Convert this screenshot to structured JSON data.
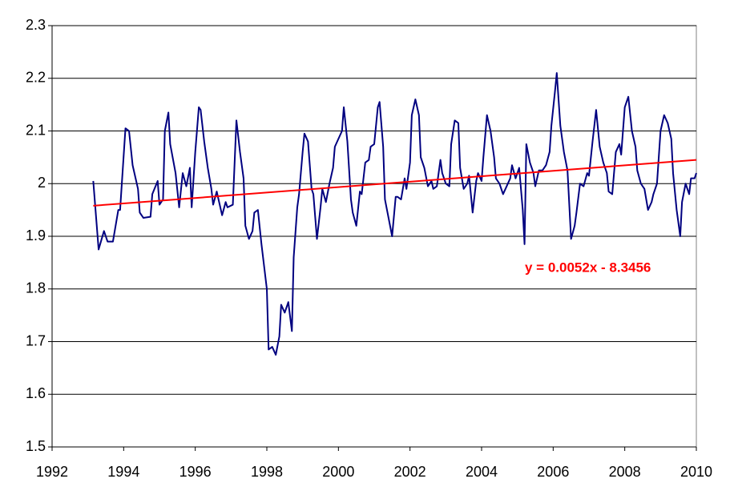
{
  "chart_data": {
    "type": "line",
    "annotation": "y = 0.0052x - 8.3456",
    "xlim": [
      1992,
      2010
    ],
    "xticks": [
      1992,
      1994,
      1996,
      1998,
      2000,
      2002,
      2004,
      2006,
      2008,
      2010
    ],
    "ylim": [
      1.5,
      2.3
    ],
    "yticks": [
      1.5,
      1.6,
      1.7,
      1.8,
      1.9,
      2,
      2.1,
      2.2,
      2.3
    ],
    "grid": true,
    "series": [
      {
        "color": "#000080",
        "x": [
          1993.15,
          1993.3,
          1993.45,
          1993.55,
          1993.7,
          1993.85,
          1993.9,
          1994.05,
          1994.15,
          1994.25,
          1994.4,
          1994.45,
          1994.55,
          1994.75,
          1994.8,
          1994.95,
          1995.0,
          1995.1,
          1995.15,
          1995.25,
          1995.3,
          1995.45,
          1995.55,
          1995.65,
          1995.75,
          1995.85,
          1995.9,
          1996.0,
          1996.1,
          1996.15,
          1996.25,
          1996.35,
          1996.45,
          1996.5,
          1996.6,
          1996.75,
          1996.85,
          1996.9,
          1997.05,
          1997.15,
          1997.25,
          1997.35,
          1997.4,
          1997.5,
          1997.6,
          1997.65,
          1997.75,
          1997.85,
          1998.0,
          1998.05,
          1998.15,
          1998.25,
          1998.35,
          1998.4,
          1998.5,
          1998.6,
          1998.7,
          1998.75,
          1998.85,
          1998.9,
          1999.0,
          1999.05,
          1999.15,
          1999.25,
          1999.3,
          1999.4,
          1999.5,
          1999.55,
          1999.65,
          1999.75,
          1999.85,
          1999.9,
          2000.0,
          2000.1,
          2000.15,
          2000.25,
          2000.35,
          2000.4,
          2000.5,
          2000.6,
          2000.65,
          2000.75,
          2000.85,
          2000.9,
          2001.0,
          2001.1,
          2001.15,
          2001.25,
          2001.3,
          2001.4,
          2001.5,
          2001.6,
          2001.65,
          2001.75,
          2001.85,
          2001.9,
          2002.0,
          2002.05,
          2002.15,
          2002.25,
          2002.3,
          2002.4,
          2002.5,
          2002.6,
          2002.65,
          2002.75,
          2002.85,
          2002.9,
          2003.0,
          2003.1,
          2003.15,
          2003.25,
          2003.35,
          2003.4,
          2003.5,
          2003.6,
          2003.65,
          2003.75,
          2003.85,
          2003.9,
          2004.0,
          2004.05,
          2004.15,
          2004.25,
          2004.35,
          2004.4,
          2004.5,
          2004.6,
          2004.7,
          2004.8,
          2004.85,
          2004.95,
          2005.05,
          2005.15,
          2005.2,
          2005.25,
          2005.35,
          2005.45,
          2005.5,
          2005.6,
          2005.7,
          2005.8,
          2005.9,
          2005.95,
          2006.05,
          2006.1,
          2006.2,
          2006.3,
          2006.4,
          2006.5,
          2006.6,
          2006.65,
          2006.75,
          2006.85,
          2006.95,
          2007.0,
          2007.1,
          2007.2,
          2007.3,
          2007.4,
          2007.5,
          2007.55,
          2007.65,
          2007.75,
          2007.85,
          2007.9,
          2008.0,
          2008.1,
          2008.2,
          2008.3,
          2008.35,
          2008.45,
          2008.55,
          2008.65,
          2008.75,
          2008.8,
          2008.9,
          2009.0,
          2009.1,
          2009.2,
          2009.3,
          2009.35,
          2009.45,
          2009.55,
          2009.6,
          2009.7,
          2009.8,
          2009.85,
          2009.95,
          2010.0
        ],
        "values": [
          2.005,
          1.875,
          1.91,
          1.89,
          1.89,
          1.95,
          1.95,
          2.105,
          2.1,
          2.035,
          1.99,
          1.945,
          1.935,
          1.937,
          1.98,
          2.005,
          1.96,
          1.97,
          2.1,
          2.135,
          2.075,
          2.02,
          1.955,
          2.02,
          1.995,
          2.03,
          1.955,
          2.06,
          2.145,
          2.14,
          2.08,
          2.03,
          1.99,
          1.96,
          1.985,
          1.94,
          1.965,
          1.955,
          1.96,
          2.12,
          2.06,
          2.01,
          1.92,
          1.895,
          1.91,
          1.945,
          1.95,
          1.885,
          1.8,
          1.685,
          1.69,
          1.675,
          1.71,
          1.77,
          1.755,
          1.775,
          1.72,
          1.86,
          1.955,
          1.98,
          2.06,
          2.095,
          2.08,
          1.99,
          1.98,
          1.895,
          1.955,
          1.99,
          1.965,
          2.0,
          2.03,
          2.07,
          2.085,
          2.1,
          2.145,
          2.08,
          1.97,
          1.945,
          1.92,
          1.985,
          1.98,
          2.04,
          2.045,
          2.07,
          2.075,
          2.145,
          2.155,
          2.07,
          1.97,
          1.935,
          1.9,
          1.975,
          1.975,
          1.97,
          2.01,
          1.99,
          2.04,
          2.13,
          2.16,
          2.13,
          2.05,
          2.03,
          1.995,
          2.005,
          1.99,
          1.995,
          2.045,
          2.02,
          2.0,
          1.995,
          2.075,
          2.12,
          2.115,
          2.03,
          1.99,
          2.0,
          2.015,
          1.945,
          2.005,
          2.02,
          2.005,
          2.05,
          2.13,
          2.1,
          2.05,
          2.01,
          2.0,
          1.98,
          1.995,
          2.01,
          2.035,
          2.01,
          2.03,
          1.95,
          1.885,
          2.075,
          2.04,
          2.02,
          1.995,
          2.025,
          2.025,
          2.035,
          2.06,
          2.11,
          2.175,
          2.21,
          2.11,
          2.06,
          2.025,
          1.895,
          1.92,
          1.945,
          2.0,
          1.995,
          2.02,
          2.015,
          2.08,
          2.14,
          2.07,
          2.04,
          2.02,
          1.985,
          1.98,
          2.06,
          2.075,
          2.055,
          2.145,
          2.165,
          2.1,
          2.07,
          2.025,
          2.0,
          1.99,
          1.95,
          1.965,
          1.98,
          2.0,
          2.1,
          2.13,
          2.115,
          2.085,
          2.02,
          1.95,
          1.9,
          1.965,
          2.0,
          1.98,
          2.01,
          2.01,
          2.02
        ]
      },
      {
        "color": "#ff0000",
        "x": [
          1993.15,
          2010.0
        ],
        "values": [
          1.958,
          2.045
        ]
      }
    ]
  }
}
